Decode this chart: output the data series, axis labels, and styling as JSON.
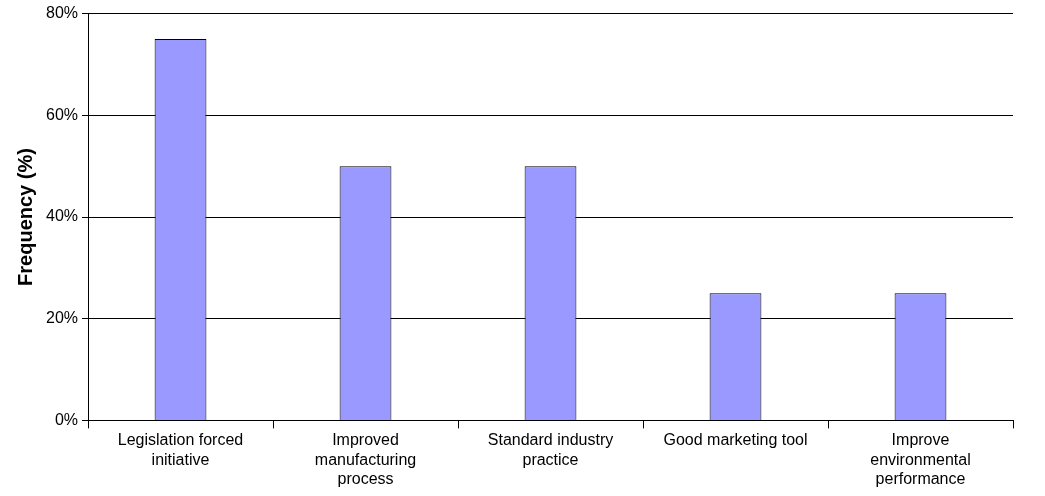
{
  "chart_data": {
    "type": "bar",
    "ylabel": "Frequency (%)",
    "categories": [
      "Legislation forced initiative",
      "Improved manufacturing process",
      "Standard industry practice",
      "Good marketing tool",
      "Improve environmental performance"
    ],
    "values": [
      75,
      50,
      50,
      25,
      25
    ],
    "color": "#9999ff",
    "ylim": [
      0,
      80
    ],
    "yticks": [
      {
        "value": 0,
        "label": "0%"
      },
      {
        "value": 20,
        "label": "20%"
      },
      {
        "value": 40,
        "label": "40%"
      },
      {
        "value": 60,
        "label": "60%"
      },
      {
        "value": 80,
        "label": "80%"
      }
    ],
    "grid": "y",
    "legend": false
  }
}
